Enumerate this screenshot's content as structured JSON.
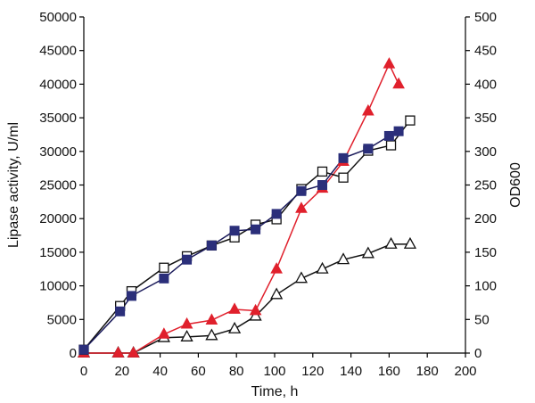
{
  "chart_data": {
    "type": "line",
    "xlabel": "Time, h",
    "ylabel_left": "Lipase activity, U/ml",
    "ylabel_right": "OD600",
    "xlim": [
      0,
      200
    ],
    "ylim_left": [
      0,
      50000
    ],
    "ylim_right": [
      0,
      500
    ],
    "x_ticks": [
      "0",
      "20",
      "40",
      "60",
      "80",
      "100",
      "120",
      "140",
      "160",
      "180",
      "200"
    ],
    "y_left_ticks": [
      "0",
      "5000",
      "10000",
      "15000",
      "20000",
      "25000",
      "30000",
      "35000",
      "40000",
      "45000",
      "50000"
    ],
    "y_right_ticks": [
      "0",
      "50",
      "100",
      "150",
      "200",
      "250",
      "300",
      "350",
      "400",
      "450",
      "500"
    ],
    "grid": false,
    "legend": "none",
    "series": [
      {
        "axis": "right",
        "marker": "filled-square",
        "color": "#2b2f7a",
        "line_color": "#1a1a5a",
        "x": [
          0,
          19,
          25,
          42,
          54,
          67,
          79,
          90,
          101,
          114,
          125,
          136,
          149,
          160,
          165
        ],
        "y": [
          5,
          62,
          85,
          111,
          139,
          160,
          182,
          184,
          207,
          241,
          250,
          290,
          304,
          323,
          330
        ]
      },
      {
        "axis": "right",
        "marker": "open-square",
        "color": "#111111",
        "line_color": "#111111",
        "x": [
          0,
          19,
          25,
          42,
          54,
          67,
          79,
          90,
          101,
          114,
          125,
          136,
          149,
          161,
          171
        ],
        "y": [
          5,
          70,
          92,
          127,
          144,
          160,
          172,
          191,
          199,
          244,
          270,
          261,
          301,
          309,
          346
        ]
      },
      {
        "axis": "left",
        "marker": "filled-triangle",
        "color": "#e0202c",
        "line_color": "#e0202c",
        "x": [
          0,
          18,
          26,
          42,
          54,
          67,
          79,
          90,
          101,
          114,
          125,
          136,
          149,
          160,
          165
        ],
        "y": [
          0,
          0,
          0,
          2800,
          4300,
          4900,
          6500,
          6300,
          12500,
          21500,
          24500,
          28500,
          36000,
          43000,
          40000
        ]
      },
      {
        "axis": "left",
        "marker": "open-triangle",
        "color": "#111111",
        "line_color": "#111111",
        "x": [
          0,
          18,
          26,
          42,
          54,
          67,
          79,
          90,
          101,
          114,
          125,
          136,
          149,
          161,
          171
        ],
        "y": [
          0,
          0,
          0,
          2300,
          2400,
          2600,
          3600,
          5500,
          8700,
          11100,
          12500,
          13900,
          14800,
          16200,
          16200
        ]
      }
    ]
  }
}
